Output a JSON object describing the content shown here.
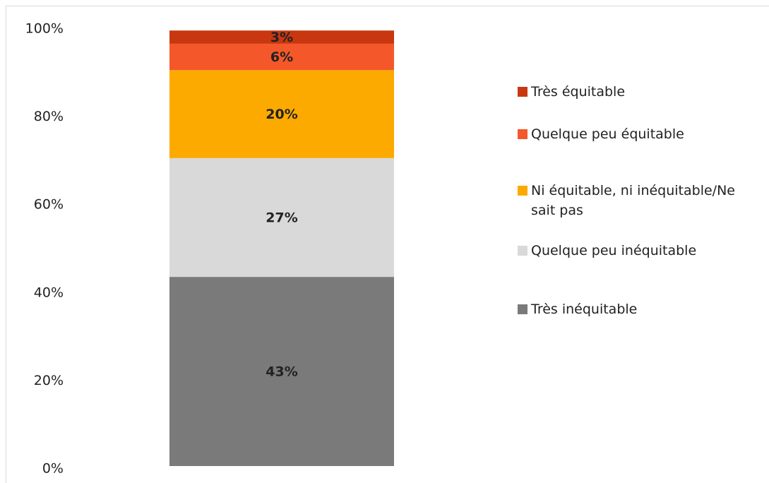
{
  "chart_data": {
    "type": "stacked_bar",
    "categories": [
      null
    ],
    "series": [
      {
        "name": "Très inéquitable",
        "color": "#7a7a7a",
        "values": [
          43
        ],
        "value_labels": [
          "43%"
        ]
      },
      {
        "name": "Quelque peu inéquitable",
        "color": "#d9d9d9",
        "values": [
          27
        ],
        "value_labels": [
          "27%"
        ]
      },
      {
        "name": "Ni équitable, ni inéquitable/Ne sait pas",
        "color": "#fcaa00",
        "values": [
          20
        ],
        "value_labels": [
          "20%"
        ]
      },
      {
        "name": "Quelque peu équitable",
        "color": "#f4582a",
        "values": [
          6
        ],
        "value_labels": [
          "6%"
        ]
      },
      {
        "name": "Très équitable",
        "color": "#c8370f",
        "values": [
          3
        ],
        "value_labels": [
          "3%"
        ]
      }
    ],
    "ylim": [
      0,
      100
    ],
    "yticks": [
      {
        "value": 0,
        "label": "0%"
      },
      {
        "value": 20,
        "label": "20%"
      },
      {
        "value": 40,
        "label": "40%"
      },
      {
        "value": 60,
        "label": "60%"
      },
      {
        "value": 80,
        "label": "80%"
      },
      {
        "value": 100,
        "label": "100%"
      }
    ],
    "grid": false,
    "legend": "right"
  }
}
